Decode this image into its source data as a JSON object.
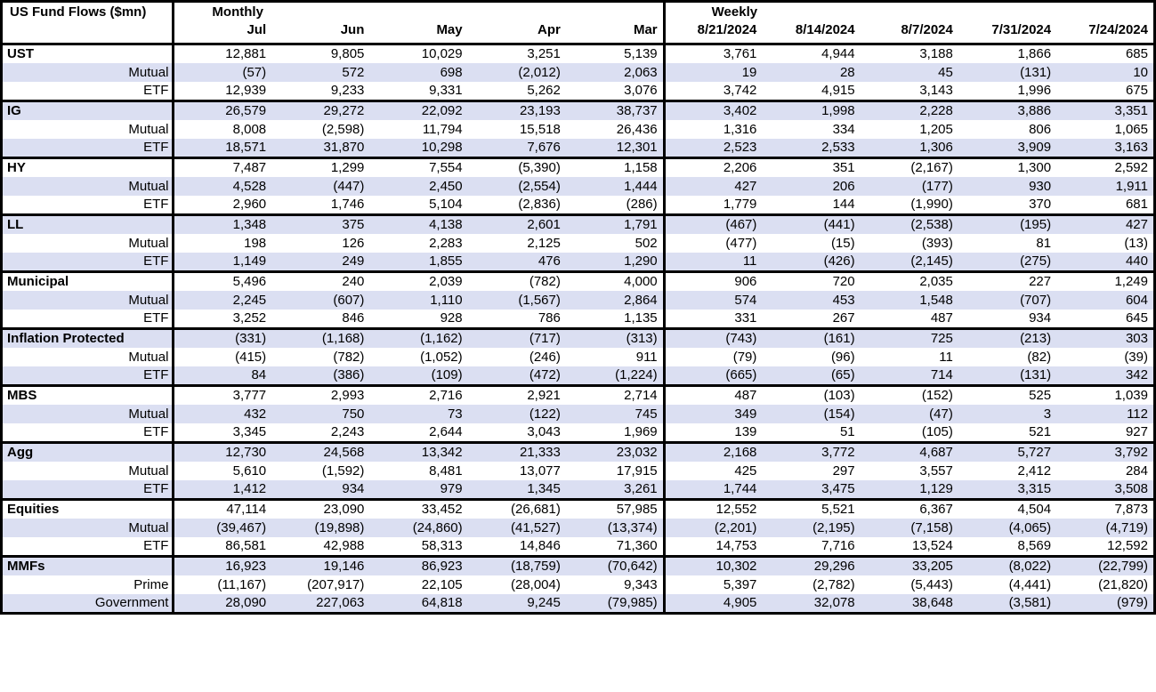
{
  "colors": {
    "row_shade": "#dbdff2",
    "border": "#000000",
    "background": "#ffffff",
    "text": "#000000"
  },
  "chart_data": {
    "type": "table",
    "title": "US Fund Flows ($mn)",
    "section_labels": {
      "monthly": "Monthly",
      "weekly": "Weekly"
    },
    "monthly_columns": [
      "Jul",
      "Jun",
      "May",
      "Apr",
      "Mar"
    ],
    "weekly_columns": [
      "8/21/2024",
      "8/14/2024",
      "8/7/2024",
      "7/31/2024",
      "7/24/2024"
    ],
    "groups": [
      {
        "name": "UST",
        "total": {
          "monthly": [
            "12,881",
            "9,805",
            "10,029",
            "3,251",
            "5,139"
          ],
          "weekly": [
            "3,761",
            "4,944",
            "3,188",
            "1,866",
            "685"
          ]
        },
        "subrows": [
          {
            "label": "Mutual",
            "monthly": [
              "(57)",
              "572",
              "698",
              "(2,012)",
              "2,063"
            ],
            "weekly": [
              "19",
              "28",
              "45",
              "(131)",
              "10"
            ]
          },
          {
            "label": "ETF",
            "monthly": [
              "12,939",
              "9,233",
              "9,331",
              "5,262",
              "3,076"
            ],
            "weekly": [
              "3,742",
              "4,915",
              "3,143",
              "1,996",
              "675"
            ]
          }
        ]
      },
      {
        "name": "IG",
        "total": {
          "monthly": [
            "26,579",
            "29,272",
            "22,092",
            "23,193",
            "38,737"
          ],
          "weekly": [
            "3,402",
            "1,998",
            "2,228",
            "3,886",
            "3,351"
          ]
        },
        "subrows": [
          {
            "label": "Mutual",
            "monthly": [
              "8,008",
              "(2,598)",
              "11,794",
              "15,518",
              "26,436"
            ],
            "weekly": [
              "1,316",
              "334",
              "1,205",
              "806",
              "1,065"
            ]
          },
          {
            "label": "ETF",
            "monthly": [
              "18,571",
              "31,870",
              "10,298",
              "7,676",
              "12,301"
            ],
            "weekly": [
              "2,523",
              "2,533",
              "1,306",
              "3,909",
              "3,163"
            ]
          }
        ]
      },
      {
        "name": "HY",
        "total": {
          "monthly": [
            "7,487",
            "1,299",
            "7,554",
            "(5,390)",
            "1,158"
          ],
          "weekly": [
            "2,206",
            "351",
            "(2,167)",
            "1,300",
            "2,592"
          ]
        },
        "subrows": [
          {
            "label": "Mutual",
            "monthly": [
              "4,528",
              "(447)",
              "2,450",
              "(2,554)",
              "1,444"
            ],
            "weekly": [
              "427",
              "206",
              "(177)",
              "930",
              "1,911"
            ]
          },
          {
            "label": "ETF",
            "monthly": [
              "2,960",
              "1,746",
              "5,104",
              "(2,836)",
              "(286)"
            ],
            "weekly": [
              "1,779",
              "144",
              "(1,990)",
              "370",
              "681"
            ]
          }
        ]
      },
      {
        "name": "LL",
        "total": {
          "monthly": [
            "1,348",
            "375",
            "4,138",
            "2,601",
            "1,791"
          ],
          "weekly": [
            "(467)",
            "(441)",
            "(2,538)",
            "(195)",
            "427"
          ]
        },
        "subrows": [
          {
            "label": "Mutual",
            "monthly": [
              "198",
              "126",
              "2,283",
              "2,125",
              "502"
            ],
            "weekly": [
              "(477)",
              "(15)",
              "(393)",
              "81",
              "(13)"
            ]
          },
          {
            "label": "ETF",
            "monthly": [
              "1,149",
              "249",
              "1,855",
              "476",
              "1,290"
            ],
            "weekly": [
              "11",
              "(426)",
              "(2,145)",
              "(275)",
              "440"
            ]
          }
        ]
      },
      {
        "name": "Municipal",
        "total": {
          "monthly": [
            "5,496",
            "240",
            "2,039",
            "(782)",
            "4,000"
          ],
          "weekly": [
            "906",
            "720",
            "2,035",
            "227",
            "1,249"
          ]
        },
        "subrows": [
          {
            "label": "Mutual",
            "monthly": [
              "2,245",
              "(607)",
              "1,110",
              "(1,567)",
              "2,864"
            ],
            "weekly": [
              "574",
              "453",
              "1,548",
              "(707)",
              "604"
            ]
          },
          {
            "label": "ETF",
            "monthly": [
              "3,252",
              "846",
              "928",
              "786",
              "1,135"
            ],
            "weekly": [
              "331",
              "267",
              "487",
              "934",
              "645"
            ]
          }
        ]
      },
      {
        "name": "Inflation Protected",
        "total": {
          "monthly": [
            "(331)",
            "(1,168)",
            "(1,162)",
            "(717)",
            "(313)"
          ],
          "weekly": [
            "(743)",
            "(161)",
            "725",
            "(213)",
            "303"
          ]
        },
        "subrows": [
          {
            "label": "Mutual",
            "monthly": [
              "(415)",
              "(782)",
              "(1,052)",
              "(246)",
              "911"
            ],
            "weekly": [
              "(79)",
              "(96)",
              "11",
              "(82)",
              "(39)"
            ]
          },
          {
            "label": "ETF",
            "monthly": [
              "84",
              "(386)",
              "(109)",
              "(472)",
              "(1,224)"
            ],
            "weekly": [
              "(665)",
              "(65)",
              "714",
              "(131)",
              "342"
            ]
          }
        ]
      },
      {
        "name": "MBS",
        "total": {
          "monthly": [
            "3,777",
            "2,993",
            "2,716",
            "2,921",
            "2,714"
          ],
          "weekly": [
            "487",
            "(103)",
            "(152)",
            "525",
            "1,039"
          ]
        },
        "subrows": [
          {
            "label": "Mutual",
            "monthly": [
              "432",
              "750",
              "73",
              "(122)",
              "745"
            ],
            "weekly": [
              "349",
              "(154)",
              "(47)",
              "3",
              "112"
            ]
          },
          {
            "label": "ETF",
            "monthly": [
              "3,345",
              "2,243",
              "2,644",
              "3,043",
              "1,969"
            ],
            "weekly": [
              "139",
              "51",
              "(105)",
              "521",
              "927"
            ]
          }
        ]
      },
      {
        "name": "Agg",
        "total": {
          "monthly": [
            "12,730",
            "24,568",
            "13,342",
            "21,333",
            "23,032"
          ],
          "weekly": [
            "2,168",
            "3,772",
            "4,687",
            "5,727",
            "3,792"
          ]
        },
        "subrows": [
          {
            "label": "Mutual",
            "monthly": [
              "5,610",
              "(1,592)",
              "8,481",
              "13,077",
              "17,915"
            ],
            "weekly": [
              "425",
              "297",
              "3,557",
              "2,412",
              "284"
            ]
          },
          {
            "label": "ETF",
            "monthly": [
              "1,412",
              "934",
              "979",
              "1,345",
              "3,261"
            ],
            "weekly": [
              "1,744",
              "3,475",
              "1,129",
              "3,315",
              "3,508"
            ]
          }
        ]
      },
      {
        "name": "Equities",
        "total": {
          "monthly": [
            "47,114",
            "23,090",
            "33,452",
            "(26,681)",
            "57,985"
          ],
          "weekly": [
            "12,552",
            "5,521",
            "6,367",
            "4,504",
            "7,873"
          ]
        },
        "subrows": [
          {
            "label": "Mutual",
            "monthly": [
              "(39,467)",
              "(19,898)",
              "(24,860)",
              "(41,527)",
              "(13,374)"
            ],
            "weekly": [
              "(2,201)",
              "(2,195)",
              "(7,158)",
              "(4,065)",
              "(4,719)"
            ]
          },
          {
            "label": "ETF",
            "monthly": [
              "86,581",
              "42,988",
              "58,313",
              "14,846",
              "71,360"
            ],
            "weekly": [
              "14,753",
              "7,716",
              "13,524",
              "8,569",
              "12,592"
            ]
          }
        ]
      },
      {
        "name": "MMFs",
        "total": {
          "monthly": [
            "16,923",
            "19,146",
            "86,923",
            "(18,759)",
            "(70,642)"
          ],
          "weekly": [
            "10,302",
            "29,296",
            "33,205",
            "(8,022)",
            "(22,799)"
          ]
        },
        "subrows": [
          {
            "label": "Prime",
            "monthly": [
              "(11,167)",
              "(207,917)",
              "22,105",
              "(28,004)",
              "9,343"
            ],
            "weekly": [
              "5,397",
              "(2,782)",
              "(5,443)",
              "(4,441)",
              "(21,820)"
            ]
          },
          {
            "label": "Government",
            "monthly": [
              "28,090",
              "227,063",
              "64,818",
              "9,245",
              "(79,985)"
            ],
            "weekly": [
              "4,905",
              "32,078",
              "38,648",
              "(3,581)",
              "(979)"
            ]
          }
        ]
      }
    ]
  }
}
